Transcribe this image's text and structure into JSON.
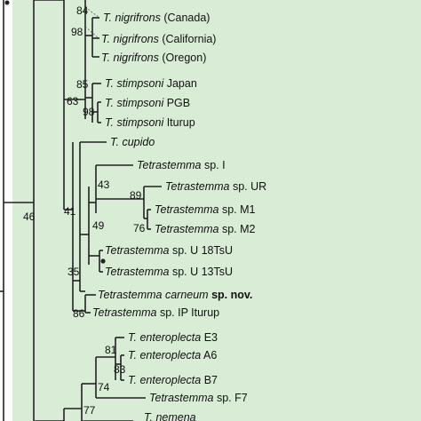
{
  "colors": {
    "background_panel": "#d8ecd6",
    "new_species": "#1f3a9e",
    "text": "#111111"
  },
  "taxa": [
    {
      "genus": "T. ",
      "epithet": "nigrifrons",
      "suffix": " (Canada)",
      "italic_full": false
    },
    {
      "genus": "T. ",
      "epithet": "nigrifrons",
      "suffix": " (California)",
      "italic_full": false
    },
    {
      "genus": "T. ",
      "epithet": "nigrifrons",
      "suffix": " (Oregon)",
      "italic_full": false
    },
    {
      "genus": "T. ",
      "epithet": "stimpsoni",
      "suffix": " Japan",
      "italic_full": false
    },
    {
      "genus": "T. ",
      "epithet": "stimpsoni",
      "suffix": " PGB",
      "italic_full": false
    },
    {
      "genus": "T. ",
      "epithet": "stimpsoni",
      "suffix": " Iturup",
      "italic_full": false
    },
    {
      "genus": "T. ",
      "epithet": "cupido",
      "suffix": "",
      "italic_full": false
    },
    {
      "genus": "Tetrastemma",
      "epithet": "",
      "suffix": " sp. I",
      "italic_full": false
    },
    {
      "genus": "Tetrastemma",
      "epithet": "",
      "suffix": " sp. UR",
      "italic_full": false
    },
    {
      "genus": "Tetrastemma",
      "epithet": "",
      "suffix": " sp. M1",
      "italic_full": false
    },
    {
      "genus": "Tetrastemma",
      "epithet": "",
      "suffix": " sp. M2",
      "italic_full": false
    },
    {
      "genus": "Tetrastemma",
      "epithet": "",
      "suffix": " sp. U 18TsU",
      "italic_full": false
    },
    {
      "genus": "Tetrastemma",
      "epithet": "",
      "suffix": " sp. U 13TsU",
      "italic_full": false
    },
    {
      "genus": "Tetrastemma carneum",
      "epithet": "",
      "suffix": " sp. nov.",
      "italic_full": false,
      "highlight": true
    },
    {
      "genus": "Tetrastemma",
      "epithet": "",
      "suffix": " sp. IP Iturup",
      "italic_full": false
    },
    {
      "genus": "T. ",
      "epithet": "enteroplecta",
      "suffix": " E3",
      "italic_full": false
    },
    {
      "genus": "T. ",
      "epithet": "enteroplecta",
      "suffix": " A6",
      "italic_full": false
    },
    {
      "genus": "T. ",
      "epithet": "enteroplecta",
      "suffix": " B7",
      "italic_full": false
    },
    {
      "genus": "Tetrastemma",
      "epithet": "",
      "suffix": " sp. F7",
      "italic_full": false
    },
    {
      "genus": "T. ",
      "epithet": "nemena",
      "suffix": "",
      "italic_full": false
    }
  ],
  "bootstrap": [
    "84",
    "98",
    "85",
    "98",
    "63",
    "43",
    "89",
    "76",
    "49",
    "41",
    "35",
    "86",
    "46",
    "81",
    "83",
    "74",
    "77"
  ]
}
